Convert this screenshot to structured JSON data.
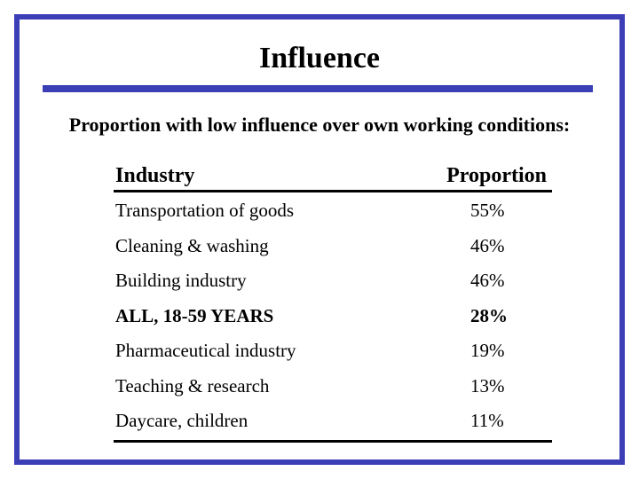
{
  "slide": {
    "title": "Influence",
    "subtitle": "Proportion with low influence over own working conditions:",
    "accent_color": "#3b3eb4"
  },
  "table": {
    "headers": [
      "Industry",
      "Proportion"
    ],
    "rows": [
      {
        "industry": "Transportation of goods",
        "proportion": "55%",
        "bold": false
      },
      {
        "industry": "Cleaning & washing",
        "proportion": "46%",
        "bold": false
      },
      {
        "industry": "Building industry",
        "proportion": "46%",
        "bold": false
      },
      {
        "industry": "ALL, 18-59 YEARS",
        "proportion": "28%",
        "bold": true
      },
      {
        "industry": "Pharmaceutical industry",
        "proportion": "19%",
        "bold": false
      },
      {
        "industry": "Teaching & research",
        "proportion": "13%",
        "bold": false
      },
      {
        "industry": "Daycare, children",
        "proportion": "11%",
        "bold": false
      }
    ]
  }
}
